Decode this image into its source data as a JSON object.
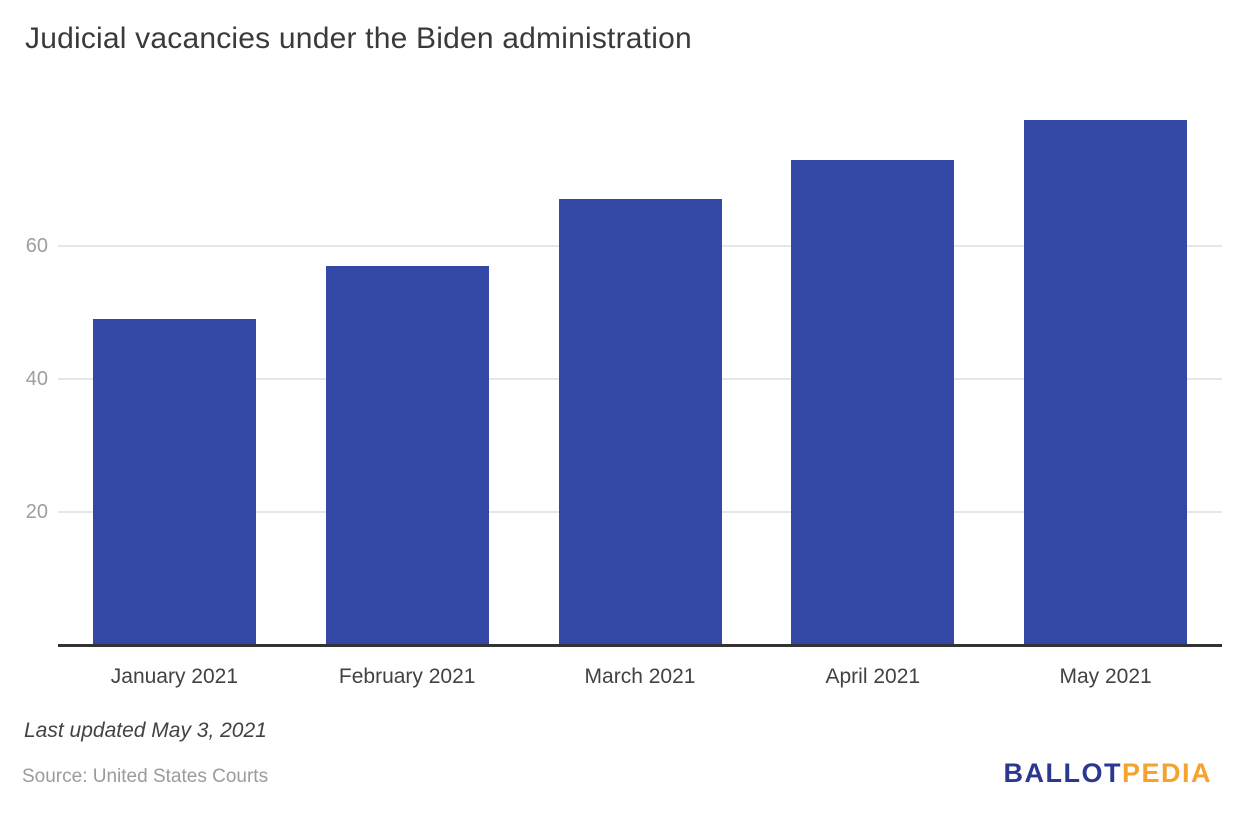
{
  "title": "Judicial vacancies under the Biden administration",
  "chart_data": {
    "type": "bar",
    "title": "Judicial vacancies under the Biden administration",
    "categories": [
      "January 2021",
      "February 2021",
      "March 2021",
      "April 2021",
      "May 2021"
    ],
    "values": [
      49,
      57,
      67,
      73,
      79
    ],
    "xlabel": "",
    "ylabel": "",
    "yticks": [
      20,
      40,
      60
    ],
    "ylim": [
      0,
      83
    ],
    "grid": true,
    "legend": "none",
    "bar_color": "#3448a5"
  },
  "colors": {
    "bar": "#3448a5",
    "gridline": "#e6e6e6",
    "axis_line": "#333333",
    "y_tick_label": "#9e9e9e",
    "x_label": "#424242",
    "title_text": "#3a3a3a",
    "logo_blue": "#2b3890",
    "logo_orange": "#f6a22d",
    "background": "#ffffff"
  },
  "footer": {
    "last_updated": "Last updated May 3, 2021",
    "source": "Source: United States Courts",
    "logo_part1": "BALLOT",
    "logo_part2": "PEDIA"
  }
}
